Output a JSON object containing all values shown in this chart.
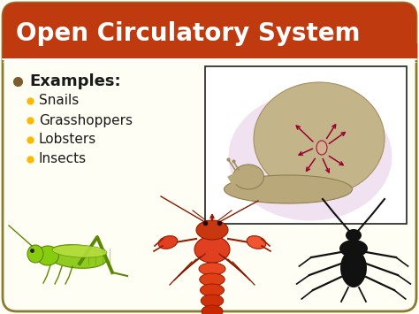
{
  "title": "Open Circulatory System",
  "title_color": "#FFFFFF",
  "title_bg_color": "#C03A10",
  "bg_color": "#FEFEF5",
  "border_color": "#8B7A30",
  "main_bullet": "Examples:",
  "main_bullet_color": "#7A5C30",
  "sub_bullets": [
    "Snails",
    "Grasshoppers",
    "Lobsters",
    "Insects"
  ],
  "sub_bullet_color": "#FFB800",
  "text_color": "#1A1A1A",
  "title_font_size": 20,
  "main_font_size": 13,
  "sub_font_size": 11,
  "snail_box_color": "#222222",
  "white_line_color": "#FFFFFF",
  "figw": 4.74,
  "figh": 3.55,
  "dpi": 100
}
